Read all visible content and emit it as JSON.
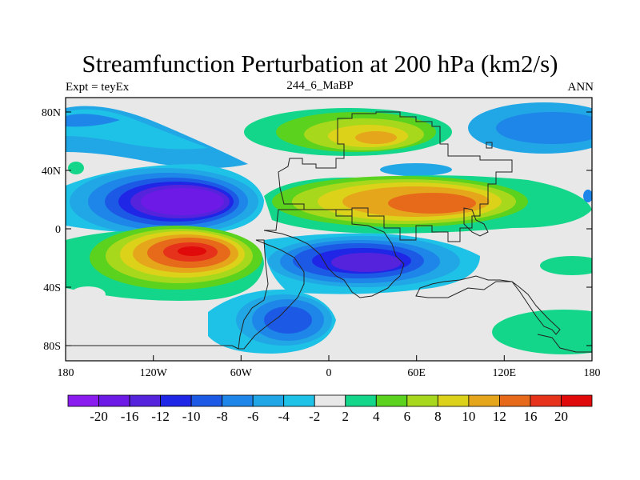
{
  "title": "Streamfunction Perturbation at 200 hPa (km2/s)",
  "left_string": "Expt = teyEx",
  "center_string": "244_6_MaBP",
  "right_string": "ANN",
  "x_ticks": [
    "180",
    "120W",
    "60W",
    "0",
    "60E",
    "120E",
    "180"
  ],
  "y_ticks": [
    "80N",
    "40N",
    "0",
    "40S",
    "80S"
  ],
  "colorbar": {
    "labels": [
      "-20",
      "-16",
      "-12",
      "-10",
      "-8",
      "-6",
      "-4",
      "-2",
      "2",
      "4",
      "6",
      "8",
      "10",
      "12",
      "16",
      "20"
    ],
    "colors": [
      "#8a1cf0",
      "#6e1ae6",
      "#5523dc",
      "#1f26e6",
      "#1c5ae6",
      "#1e86e8",
      "#21a6e6",
      "#1ec2e6",
      "#e8e8e8",
      "#14d68a",
      "#5ad21e",
      "#a8d81c",
      "#dcd21a",
      "#e6a61c",
      "#e66a1a",
      "#e6321a",
      "#e00a0a"
    ]
  },
  "map": {
    "projection": "cylindrical equidistant",
    "lon_range": [
      -180,
      180
    ],
    "lat_range": [
      -90,
      90
    ],
    "field": "streamfunction perturbation"
  }
}
